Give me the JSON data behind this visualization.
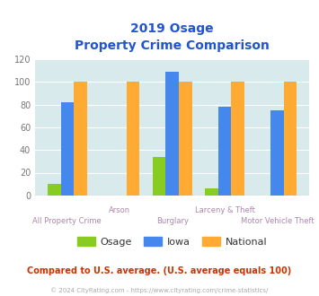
{
  "title_line1": "2019 Osage",
  "title_line2": "Property Crime Comparison",
  "categories": [
    "All Property Crime",
    "Arson",
    "Burglary",
    "Larceny & Theft",
    "Motor Vehicle Theft"
  ],
  "osage_values": [
    10,
    0,
    34,
    6,
    0
  ],
  "iowa_values": [
    82,
    0,
    109,
    78,
    75
  ],
  "national_values": [
    100,
    100,
    100,
    100,
    100
  ],
  "osage_color": "#88cc22",
  "iowa_color": "#4488ee",
  "national_color": "#ffaa33",
  "title_color": "#2255cc",
  "plot_bg_color": "#d8eaec",
  "fig_bg_color": "#ffffff",
  "ylim": [
    0,
    120
  ],
  "yticks": [
    0,
    20,
    40,
    60,
    80,
    100,
    120
  ],
  "xlabel_color": "#aa88aa",
  "footer_text": "Compared to U.S. average. (U.S. average equals 100)",
  "footer_color": "#cc3300",
  "copyright_text": "© 2024 CityRating.com - https://www.cityrating.com/crime-statistics/",
  "copyright_color": "#aaaaaa",
  "bar_width": 0.25
}
